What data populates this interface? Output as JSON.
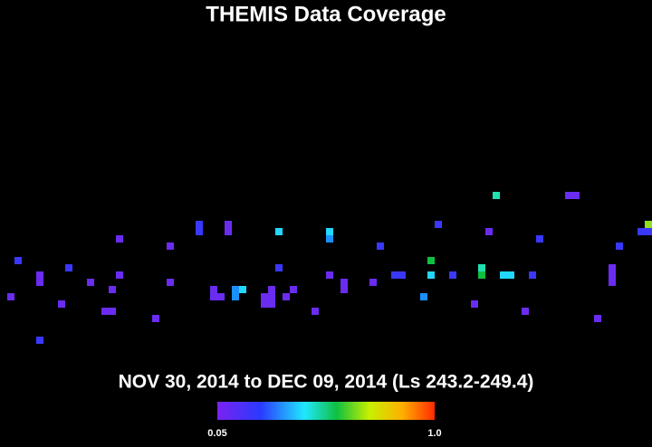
{
  "header": {
    "title": "THEMIS Data Coverage"
  },
  "subtitle": "NOV 30, 2014 to DEC 09, 2014 (Ls 243.2-249.4)",
  "colorbar": {
    "min_label": "0.05",
    "max_label": "1.0"
  }
}
